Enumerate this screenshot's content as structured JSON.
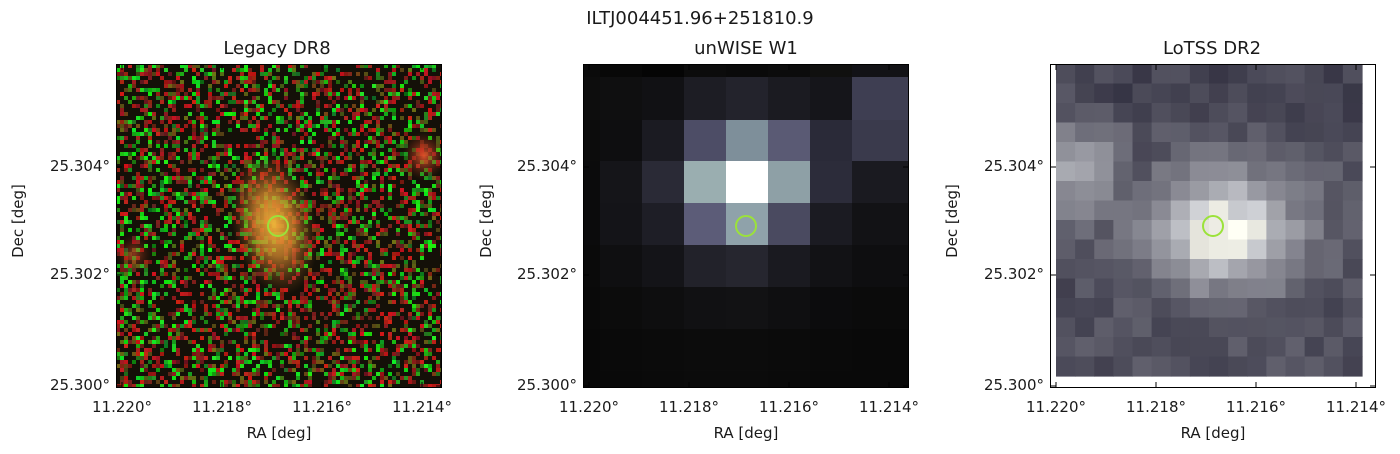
{
  "figure": {
    "suptitle": "ILTJ004451.96+251810.9",
    "x_axis_label": "RA [deg]",
    "y_axis_label": "Dec [deg]",
    "x_tick_labels": [
      "11.220°",
      "11.218°",
      "11.216°",
      "11.214°"
    ],
    "y_tick_labels": [
      "25.304°",
      "25.302°",
      "25.300°"
    ],
    "marker_color": "#9be23a"
  },
  "panels": [
    {
      "title": "Legacy DR8",
      "colormap": "rgb-noise"
    },
    {
      "title": "unWISE W1",
      "colormap": "bone"
    },
    {
      "title": "LoTSS DR2",
      "colormap": "bone"
    }
  ]
}
